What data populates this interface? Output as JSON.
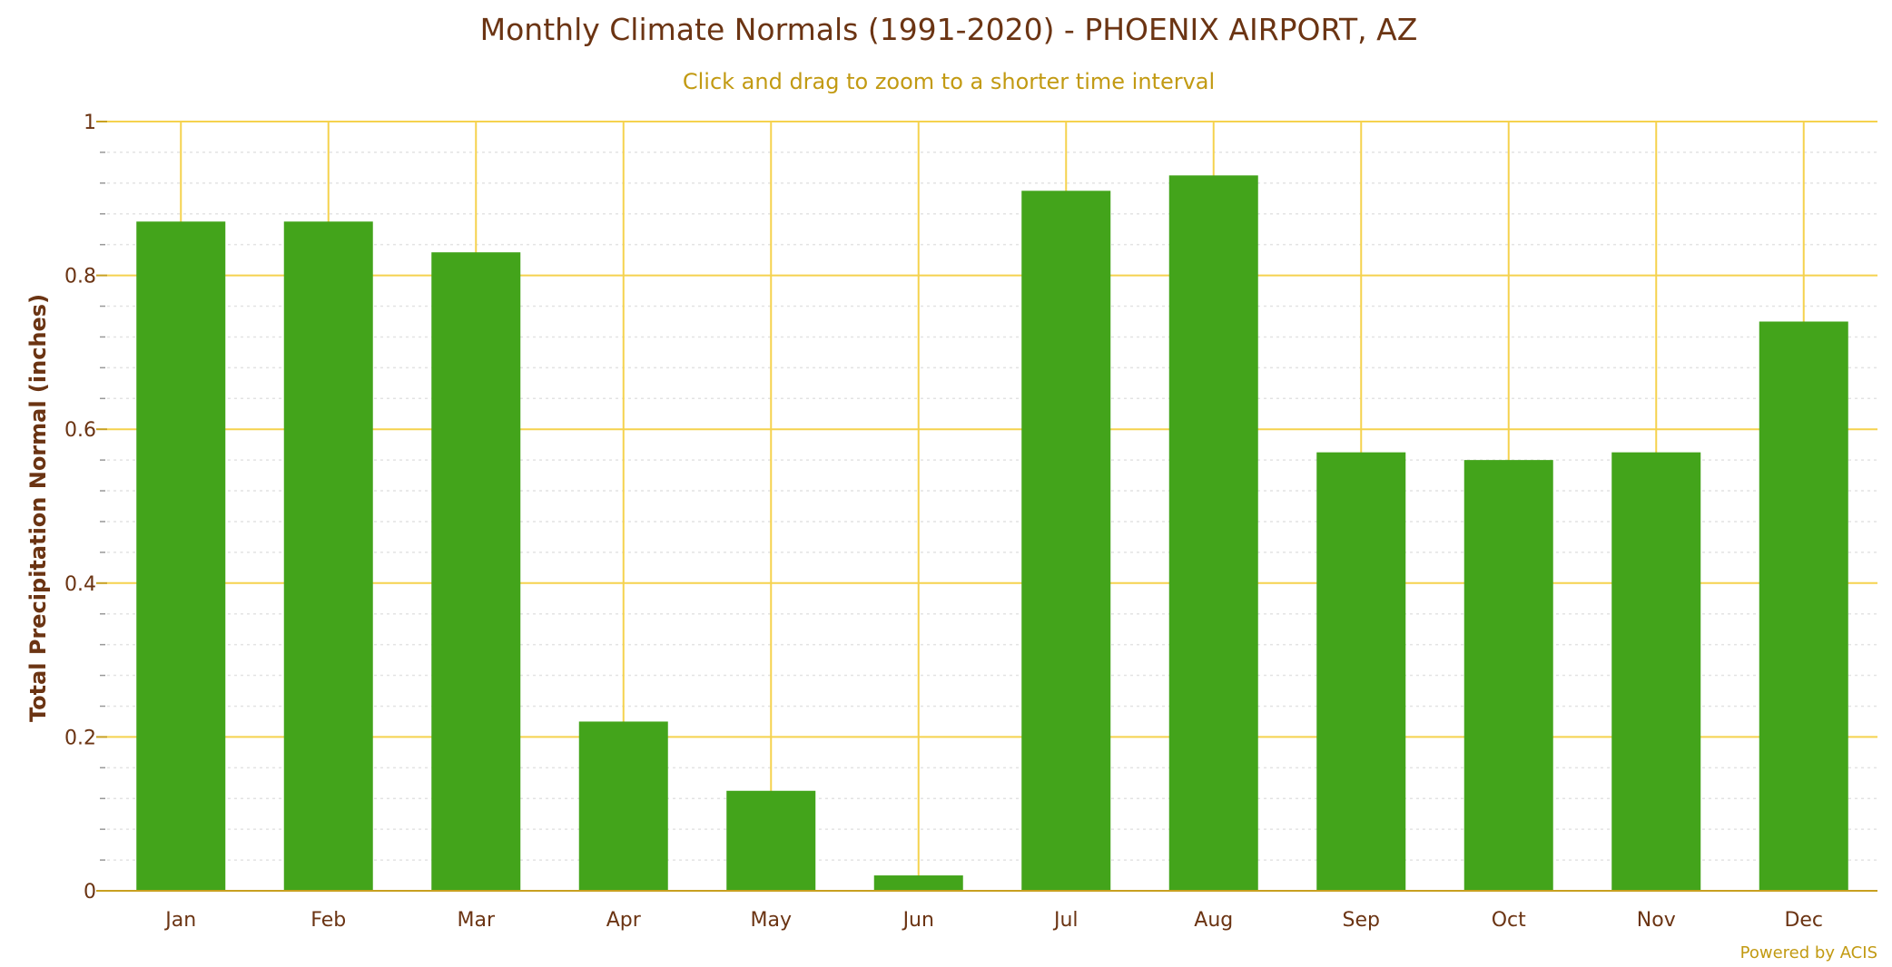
{
  "colors": {
    "bar": "#43a41b",
    "grid_major": "#f5d24e",
    "grid_minor": "#e3e3e3",
    "axis_line": "#c8a020",
    "title": "#6b3413",
    "subtitle": "#c29a12"
  },
  "chart_data": {
    "type": "bar",
    "title": "Monthly Climate Normals (1991-2020) - PHOENIX AIRPORT, AZ",
    "subtitle": "Click and drag to zoom to a shorter time interval",
    "xlabel": "",
    "ylabel": "Total Precipitation Normal (inches)",
    "categories": [
      "Jan",
      "Feb",
      "Mar",
      "Apr",
      "May",
      "Jun",
      "Jul",
      "Aug",
      "Sep",
      "Oct",
      "Nov",
      "Dec"
    ],
    "values": [
      0.87,
      0.87,
      0.83,
      0.22,
      0.13,
      0.02,
      0.91,
      0.93,
      0.57,
      0.56,
      0.57,
      0.74
    ],
    "ylim": [
      0,
      1
    ],
    "y_ticks": [
      "0",
      "0.2",
      "0.4",
      "0.6",
      "0.8",
      "1"
    ],
    "grid": true,
    "legend": "none",
    "credits": "Powered by ACIS"
  }
}
